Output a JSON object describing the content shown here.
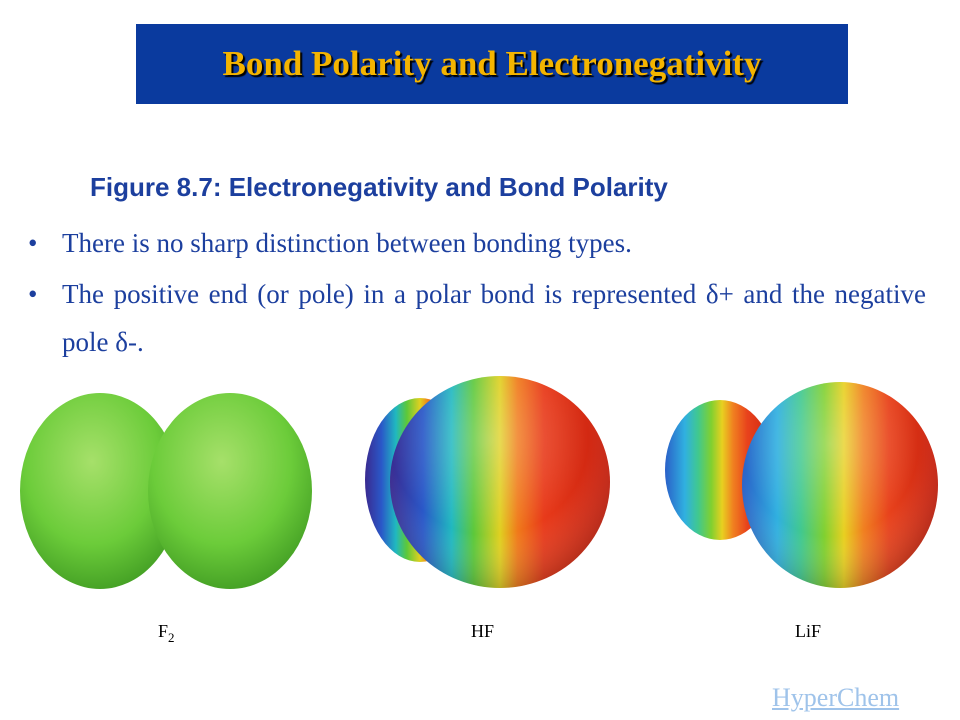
{
  "header": {
    "title": "Bond Polarity and Electronegativity"
  },
  "caption": "Figure 8.7:  Electronegativity and Bond Polarity",
  "bullets": [
    "There is no sharp distinction between bonding types.",
    "The positive end (or pole) in a polar bond is represented δ+ and the negative pole δ-."
  ],
  "bullet_symbol": "•",
  "molecules": [
    {
      "label": "F",
      "subscript": "2"
    },
    {
      "label": "HF"
    },
    {
      "label": "LiF"
    }
  ],
  "link": "HyperChem"
}
